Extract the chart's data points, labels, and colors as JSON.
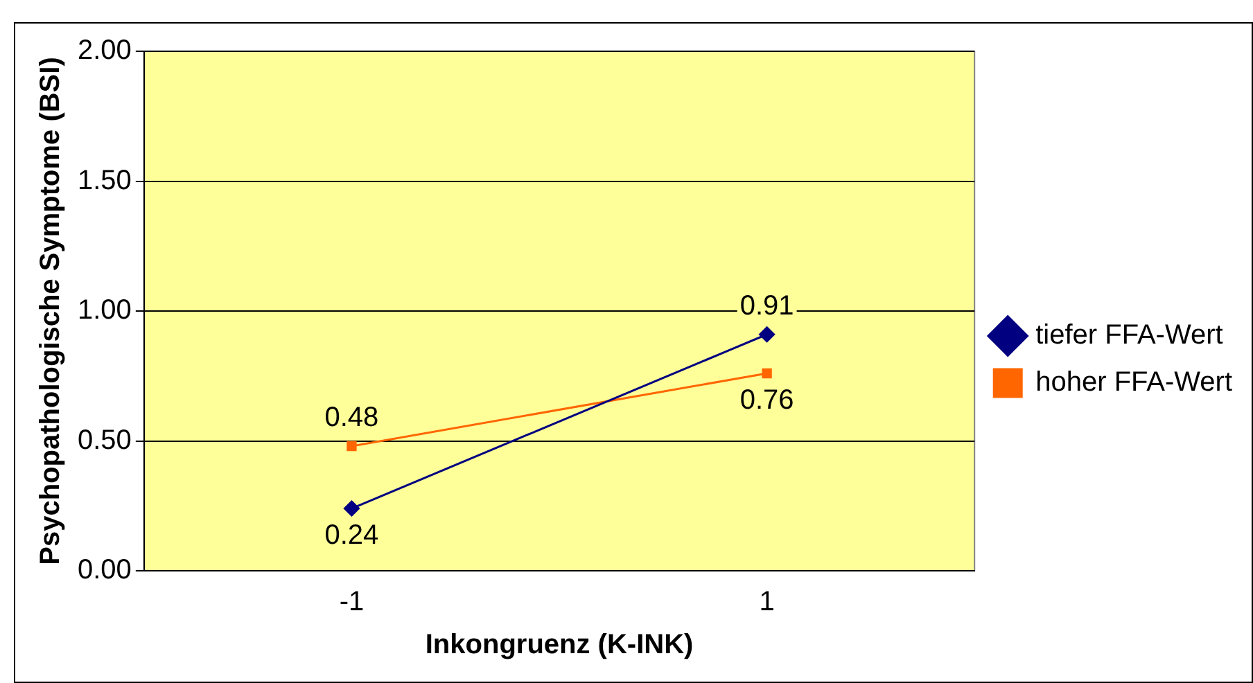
{
  "chart_data": {
    "type": "line",
    "xlabel": "Inkongruenz (K-INK)",
    "ylabel": "Psychopathologische Symptome (BSI)",
    "categories": [
      "-1",
      "1"
    ],
    "series": [
      {
        "name": "tiefer FFA-Wert",
        "color": "#000080",
        "marker": "diamond",
        "values": [
          0.24,
          0.91
        ]
      },
      {
        "name": "hoher FFA-Wert",
        "color": "#ff6600",
        "marker": "square",
        "values": [
          0.48,
          0.76
        ]
      }
    ],
    "ylim": [
      0,
      2
    ],
    "yticks": [
      {
        "value": 0,
        "label": "0.00"
      },
      {
        "value": 0.5,
        "label": "0.50"
      },
      {
        "value": 1,
        "label": "1.00"
      },
      {
        "value": 1.5,
        "label": "1.50"
      },
      {
        "value": 2,
        "label": "2.00"
      }
    ],
    "grid": "y",
    "legend": "right",
    "data_labels": true
  }
}
